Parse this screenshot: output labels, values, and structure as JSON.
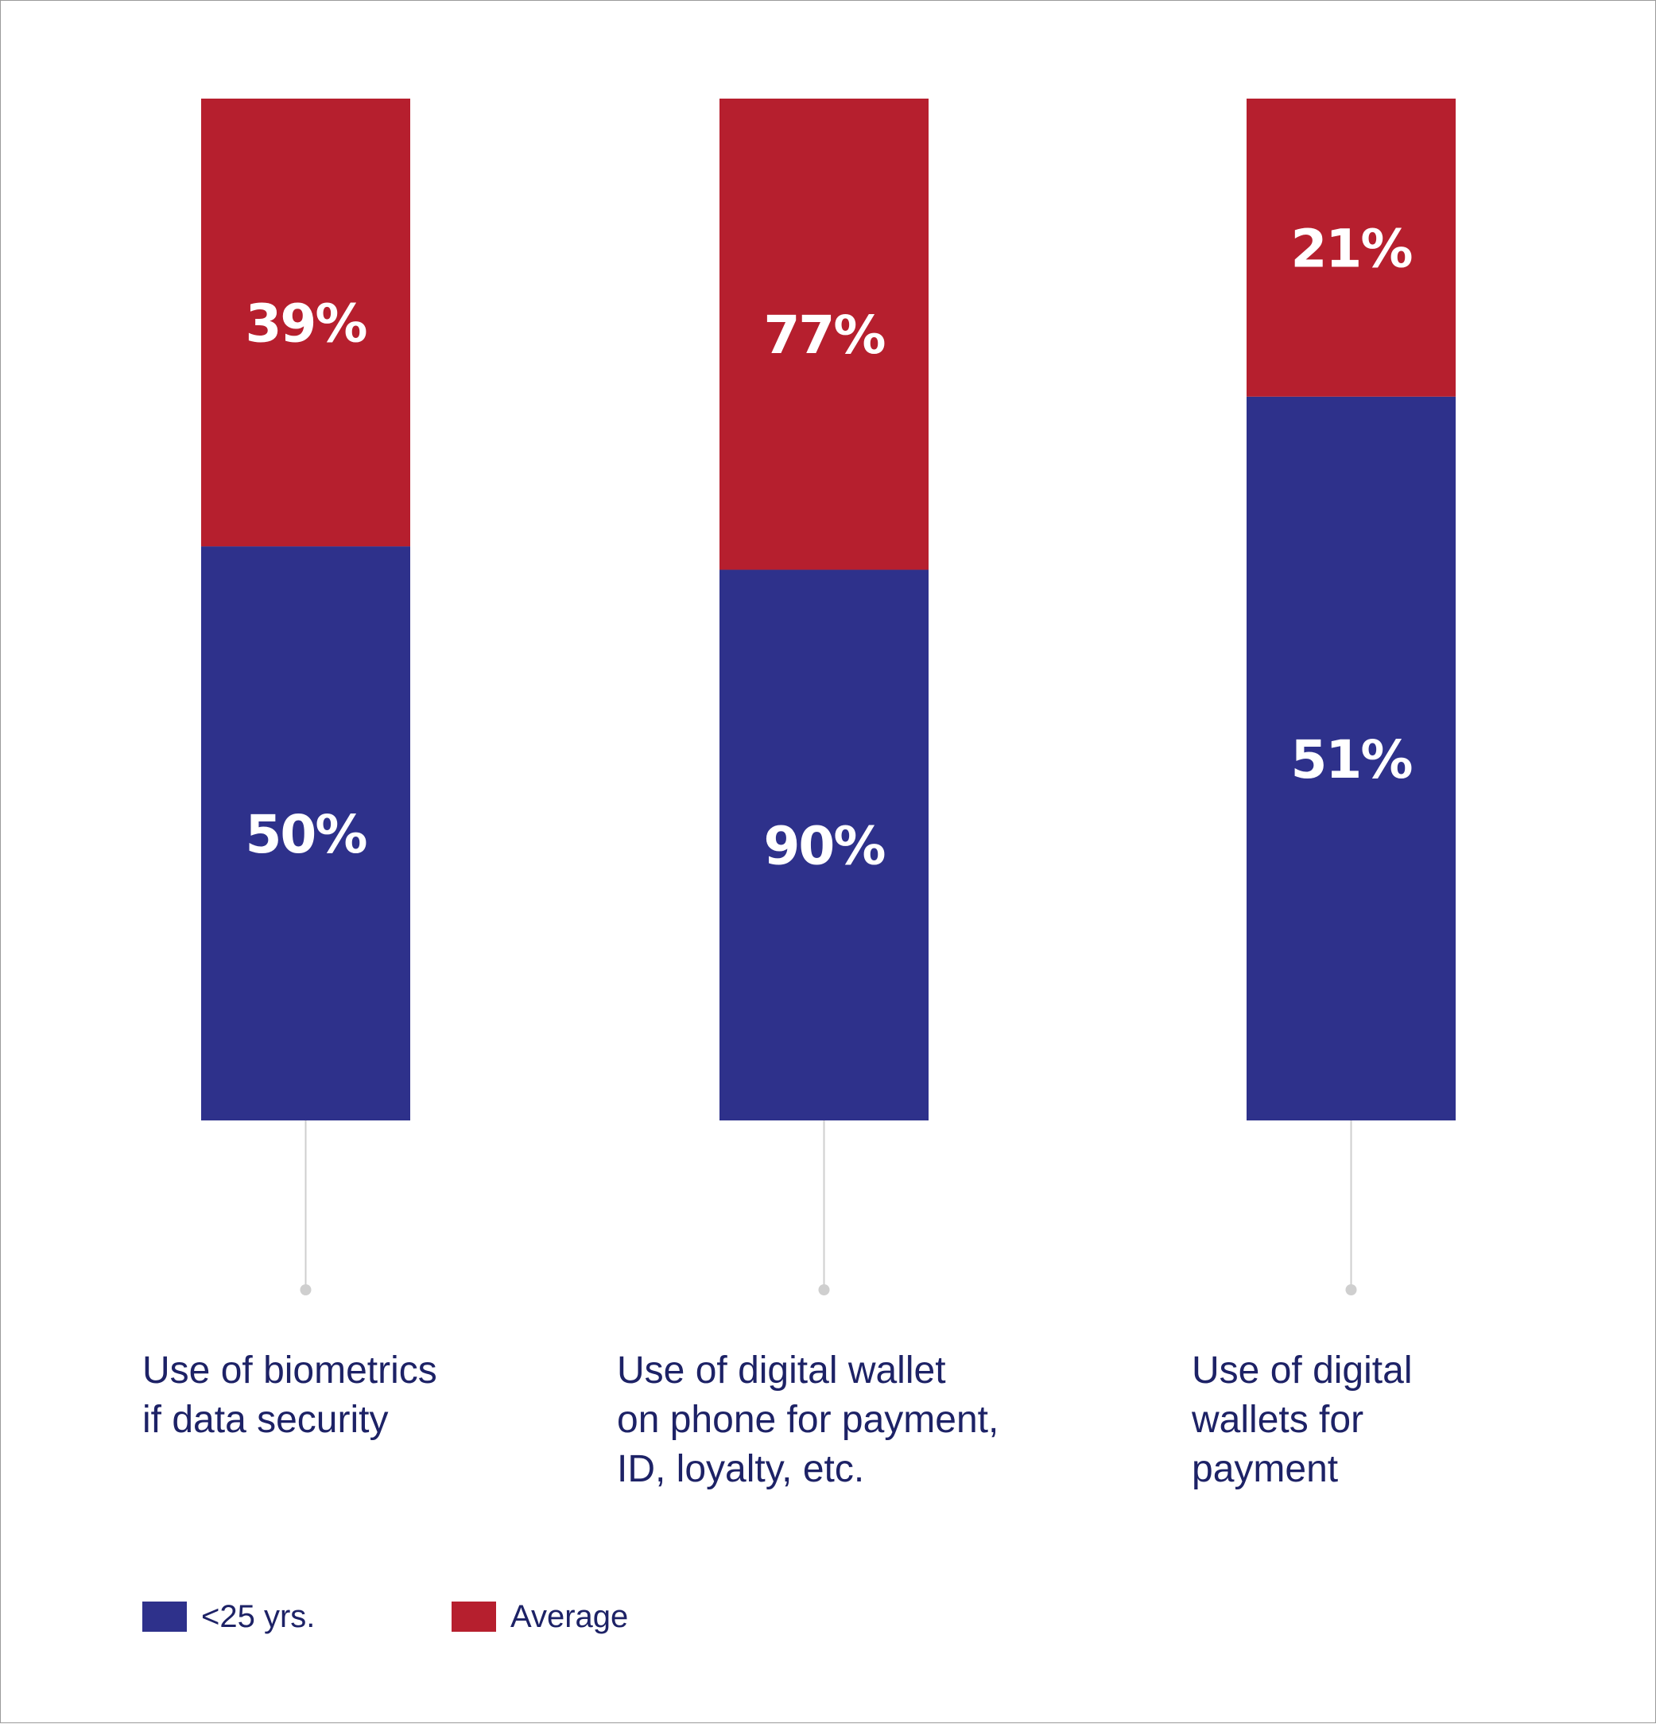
{
  "colors": {
    "under25": "#2e318b",
    "average": "#b61f2e",
    "connector": "#cfcfcf",
    "text": "#1d2266"
  },
  "chart_data": {
    "type": "bar",
    "stacked": true,
    "categories": [
      "Use of biometrics\nif data security",
      "Use of digital wallet\non phone for payment,\nID, loyalty, etc.",
      "Use of digital\nwallets for\npayment"
    ],
    "series": [
      {
        "name": "<25 yrs.",
        "values": [
          50,
          90,
          51
        ],
        "labels": [
          "50%",
          "90%",
          "51%"
        ]
      },
      {
        "name": "Average",
        "values": [
          39,
          77,
          21
        ],
        "labels": [
          "39%",
          "77%",
          "21%"
        ]
      }
    ],
    "legend": [
      "<25 yrs.",
      "Average"
    ],
    "legend_position": "bottom-left",
    "title": "",
    "xlabel": "",
    "ylabel": "",
    "grid": false
  }
}
